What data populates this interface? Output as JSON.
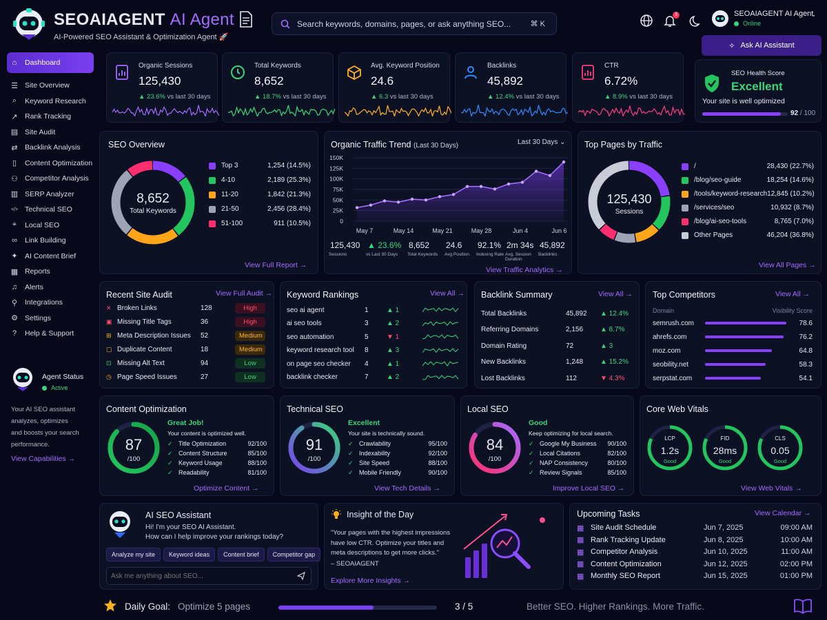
{
  "brand": {
    "name": "SEOAIAGENT",
    "suffix": "AI Agent",
    "tagline": "AI-Powered SEO Assistant & Optimization Agent 🚀"
  },
  "search": {
    "placeholder": "Search keywords, domains, pages, or ask anything SEO...",
    "shortcut": "⌘ K"
  },
  "header": {
    "notifications": "3",
    "user_name": "SEOAIAGENT AI Agent",
    "user_status": "Online",
    "ask_button": "Ask AI Assistant"
  },
  "sidebar": {
    "items": [
      {
        "label": "Dashboard",
        "icon": "home-icon",
        "active": true
      },
      {
        "label": "Site Overview",
        "icon": "list-icon"
      },
      {
        "label": "Keyword Research",
        "icon": "search-icon"
      },
      {
        "label": "Rank Tracking",
        "icon": "chart-icon"
      },
      {
        "label": "Site Audit",
        "icon": "clipboard-icon"
      },
      {
        "label": "Backlink Analysis",
        "icon": "link-icon"
      },
      {
        "label": "Content Optimization",
        "icon": "doc-icon"
      },
      {
        "label": "Competitor Analysis",
        "icon": "users-icon"
      },
      {
        "label": "SERP Analyzer",
        "icon": "bars-icon"
      },
      {
        "label": "Technical SEO",
        "icon": "code-icon"
      },
      {
        "label": "Local SEO",
        "icon": "pin-icon"
      },
      {
        "label": "Link Building",
        "icon": "chain-icon"
      },
      {
        "label": "AI Content Brief",
        "icon": "sparkle-icon"
      },
      {
        "label": "Reports",
        "icon": "report-icon"
      },
      {
        "label": "Alerts",
        "icon": "bell-icon"
      },
      {
        "label": "Integrations",
        "icon": "plug-icon"
      },
      {
        "label": "Settings",
        "icon": "gear-icon"
      },
      {
        "label": "Help & Support",
        "icon": "help-icon"
      }
    ],
    "agent_title": "Agent Status",
    "agent_state": "Active",
    "agent_desc": "Your AI SEO assistant analyzes, optimizes and boosts your search performance.",
    "capabilities_link": "View Capabilities  →"
  },
  "kpis": [
    {
      "label": "Organic Sessions",
      "value": "125,430",
      "delta": "▲ 23.6%",
      "period": "vs last 30 days",
      "color": "#a46bff",
      "icon": "chart-doc-icon"
    },
    {
      "label": "Total Keywords",
      "value": "8,652",
      "delta": "▲ 18.7%",
      "period": "vs last 30 days",
      "color": "#37d67a",
      "icon": "clock-icon"
    },
    {
      "label": "Avg. Keyword Position",
      "value": "24.6",
      "delta": "▲ 6.3",
      "period": "vs last 30 days",
      "color": "#ffb020",
      "icon": "box-icon"
    },
    {
      "label": "Backlinks",
      "value": "45,892",
      "delta": "▲ 12.4%",
      "period": "vs last 30 days",
      "color": "#2f8cff",
      "icon": "user-icon"
    },
    {
      "label": "CTR",
      "value": "6.72%",
      "delta": "▲ 8.9%",
      "period": "vs last 30 days",
      "color": "#ff3d7f",
      "icon": "doc-chart-icon"
    }
  ],
  "health": {
    "label": "SEO Health Score",
    "status": "Excellent",
    "desc": "Your site is well optimized",
    "score": "92",
    "max": "/ 100",
    "fraction": 0.92
  },
  "seo_overview": {
    "title": "SEO Overview",
    "total": "8,652",
    "total_label": "Total Keywords",
    "link": "View Full Report  →",
    "rows": [
      {
        "name": "Top 3",
        "value": "1,254 (14.5%)",
        "color": "#8a3ffc"
      },
      {
        "name": "4-10",
        "value": "2,189 (25.3%)",
        "color": "#22c55e"
      },
      {
        "name": "11-20",
        "value": "1,842 (21.3%)",
        "color": "#ffa51a"
      },
      {
        "name": "21-50",
        "value": "2,456 (28.4%)",
        "color": "#9ea3b5"
      },
      {
        "name": "51-100",
        "value": "911  (10.5%)",
        "color": "#ff2e6e"
      }
    ]
  },
  "traffic": {
    "title": "Organic Traffic Trend",
    "period": "(Last 30 Days)",
    "range": "Last 30 Days",
    "link": "View Traffic Analytics  →",
    "stats": [
      {
        "value": "125,430",
        "label": "Sessions"
      },
      {
        "value": "▲ 23.6%",
        "label": "vs Last 30 Days"
      },
      {
        "value": "8,652",
        "label": "Total Keywords"
      },
      {
        "value": "24.6",
        "label": "Avg Position"
      },
      {
        "value": "92.1%",
        "label": "Indexing Rate"
      },
      {
        "value": "2m 34s",
        "label": "Avg. Session Duration"
      },
      {
        "value": "45,892",
        "label": "Backlinks"
      }
    ]
  },
  "chart_data": {
    "type": "area",
    "x": [
      "May 7",
      "May 10",
      "May 12",
      "May 14",
      "May 17",
      "May 19",
      "May 21",
      "May 23",
      "May 25",
      "May 28",
      "May 30",
      "Jun 1",
      "Jun 4",
      "Jun 6",
      "Jun 8",
      "Jun 9"
    ],
    "xticks": [
      "May 7",
      "May 14",
      "May 21",
      "May 28",
      "Jun 4",
      "Jun 6"
    ],
    "series": [
      {
        "values": [
          32000,
          38000,
          48000,
          45000,
          52000,
          50000,
          58000,
          63000,
          82000,
          82000,
          76000,
          88000,
          92000,
          118000,
          108000,
          140000
        ]
      }
    ],
    "yticks": [
      "150K",
      "125K",
      "100K",
      "75K",
      "50K",
      "25K",
      "0"
    ],
    "ylim": [
      0,
      150000
    ],
    "grid": true
  },
  "top_pages": {
    "title": "Top Pages by Traffic",
    "total": "125,430",
    "total_label": "Sessions",
    "link": "View All Pages  →",
    "rows": [
      {
        "name": "/",
        "value": "28,430 (22.7%)",
        "color": "#8a3ffc"
      },
      {
        "name": "/blog/seo-guide",
        "value": "18,254 (14.6%)",
        "color": "#22c55e"
      },
      {
        "name": "/tools/keyword-research",
        "value": "12,845 (10.2%)",
        "color": "#ffa51a"
      },
      {
        "name": "/services/seo",
        "value": "10,932 (8.7%)",
        "color": "#9ea3b5"
      },
      {
        "name": "/blog/ai-seo-tools",
        "value": "8,765 (7.0%)",
        "color": "#ff2e6e"
      },
      {
        "name": "Other Pages",
        "value": "46,204 (36.8%)",
        "color": "#c9cbd6"
      }
    ]
  },
  "audit": {
    "title": "Recent Site Audit",
    "link": "View Full Audit  →",
    "rows": [
      {
        "name": "Broken Links",
        "count": "128",
        "level": "High",
        "cls": "high"
      },
      {
        "name": "Missing Title Tags",
        "count": "36",
        "level": "High",
        "cls": "high"
      },
      {
        "name": "Meta Description Issues",
        "count": "52",
        "level": "Medium",
        "cls": "medium"
      },
      {
        "name": "Duplicate Content",
        "count": "18",
        "level": "Medium",
        "cls": "medium"
      },
      {
        "name": "Missing Alt Text",
        "count": "94",
        "level": "Low",
        "cls": "low"
      },
      {
        "name": "Page Speed Issues",
        "count": "27",
        "level": "Low",
        "cls": "low"
      }
    ]
  },
  "rankings": {
    "title": "Keyword Rankings",
    "link": "View All  →",
    "rows": [
      {
        "kw": "seo ai agent",
        "pos": "1",
        "chg": "▲ 1",
        "up": true
      },
      {
        "kw": "ai seo tools",
        "pos": "3",
        "chg": "▲ 2",
        "up": true
      },
      {
        "kw": "seo automation",
        "pos": "5",
        "chg": "▼ 1",
        "up": false
      },
      {
        "kw": "keyword research tool",
        "pos": "8",
        "chg": "▲ 3",
        "up": true
      },
      {
        "kw": "on page seo checker",
        "pos": "4",
        "chg": "▲ 1",
        "up": true
      },
      {
        "kw": "backlink checker",
        "pos": "7",
        "chg": "▲ 2",
        "up": true
      }
    ]
  },
  "backlinks": {
    "title": "Backlink Summary",
    "link": "View All  →",
    "rows": [
      {
        "name": "Total Backlinks",
        "value": "45,892",
        "chg": "▲ 12.4%",
        "up": true
      },
      {
        "name": "Referring Domains",
        "value": "2,156",
        "chg": "▲ 8.7%",
        "up": true
      },
      {
        "name": "Domain Rating",
        "value": "72",
        "chg": "▲ 3",
        "up": true
      },
      {
        "name": "New Backlinks",
        "value": "1,248",
        "chg": "▲ 15.2%",
        "up": true
      },
      {
        "name": "Lost Backlinks",
        "value": "112",
        "chg": "▼ 4.3%",
        "up": false
      }
    ]
  },
  "competitors": {
    "title": "Top Competitors",
    "link": "View All  →",
    "col1": "Domain",
    "col2": "Visibility Score",
    "rows": [
      {
        "domain": "semrush.com",
        "score": "78.6",
        "v": 78.6
      },
      {
        "domain": "ahrefs.com",
        "score": "76.2",
        "v": 76.2
      },
      {
        "domain": "moz.com",
        "score": "64.8",
        "v": 64.8
      },
      {
        "domain": "seobility.net",
        "score": "58.3",
        "v": 58.3
      },
      {
        "domain": "serpstat.com",
        "score": "54.1",
        "v": 54.1
      }
    ]
  },
  "content_opt": {
    "title": "Content Optimization",
    "score": "87",
    "max": "/100",
    "fraction": 0.87,
    "status": "Great Job!",
    "desc": "Your content is optimized well.",
    "link": "Optimize Content  →",
    "rows": [
      {
        "name": "Title Optimization",
        "value": "92/100"
      },
      {
        "name": "Content Structure",
        "value": "85/100"
      },
      {
        "name": "Keyword Usage",
        "value": "88/100"
      },
      {
        "name": "Readability",
        "value": "81/100"
      }
    ]
  },
  "tech_seo": {
    "title": "Technical SEO",
    "score": "91",
    "max": "/100",
    "fraction": 0.91,
    "status": "Excellent",
    "desc": "Your site is technically sound.",
    "link": "View Tech Details  →",
    "rows": [
      {
        "name": "Crawlability",
        "value": "95/100"
      },
      {
        "name": "Indexability",
        "value": "92/100"
      },
      {
        "name": "Site Speed",
        "value": "88/100"
      },
      {
        "name": "Mobile Friendly",
        "value": "90/100"
      }
    ]
  },
  "local_seo": {
    "title": "Local SEO",
    "score": "84",
    "max": "/100",
    "fraction": 0.84,
    "status": "Good",
    "desc": "Keep optimizing for local search.",
    "link": "Improve Local SEO  →",
    "rows": [
      {
        "name": "Google My Business",
        "value": "90/100"
      },
      {
        "name": "Local Citations",
        "value": "82/100"
      },
      {
        "name": "NAP Consistency",
        "value": "80/100"
      },
      {
        "name": "Review Signals",
        "value": "85/100"
      }
    ]
  },
  "cwv": {
    "title": "Core Web Vitals",
    "link": "View Web Vitals  →",
    "items": [
      {
        "name": "LCP",
        "value": "1.2s",
        "status": "Good"
      },
      {
        "name": "FID",
        "value": "28ms",
        "status": "Good"
      },
      {
        "name": "CLS",
        "value": "0.05",
        "status": "Good"
      }
    ]
  },
  "assistant": {
    "title": "AI SEO Assistant",
    "msg1": "Hi! I'm your SEO AI Assistant.",
    "msg2": "How can I help improve your rankings today?",
    "chips": [
      "Analyze my site",
      "Keyword ideas",
      "Content brief",
      "Competitor gap"
    ],
    "placeholder": "Ask me anything about SEO..."
  },
  "insight": {
    "title": "Insight of the Day",
    "quote": "\"Your pages with the highest impressions have low CTR. Optimize your titles and meta descriptions to get more clicks.\"",
    "author": "– SEOAIAGENT",
    "link": "Explore More Insights  →"
  },
  "tasks": {
    "title": "Upcoming Tasks",
    "link": "View Calendar  →",
    "rows": [
      {
        "name": "Site Audit Schedule",
        "date": "Jun 7, 2025",
        "time": "09:00 AM"
      },
      {
        "name": "Rank Tracking Update",
        "date": "Jun 8, 2025",
        "time": "10:00 AM"
      },
      {
        "name": "Competitor Analysis",
        "date": "Jun 10, 2025",
        "time": "11:00 AM"
      },
      {
        "name": "Content Optimization",
        "date": "Jun 12, 2025",
        "time": "02:00 PM"
      },
      {
        "name": "Monthly SEO Report",
        "date": "Jun 15, 2025",
        "time": "01:00 PM"
      }
    ]
  },
  "footer": {
    "goal_label": "Daily Goal:",
    "goal_text": "Optimize 5 pages",
    "progress": "3 / 5",
    "fraction": 0.6,
    "slogan": "Better SEO. Higher Rankings. More Traffic."
  }
}
